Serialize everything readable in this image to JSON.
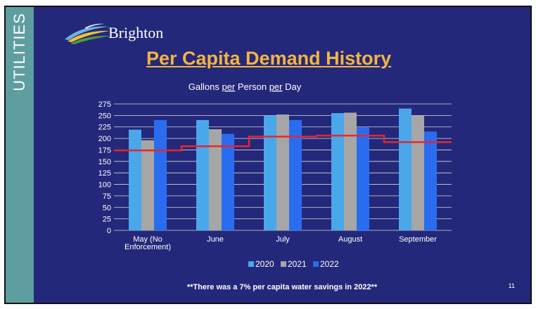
{
  "side_label": "UTILITIES",
  "brand": "Brighton",
  "page_title": "Per Capita Demand History",
  "page_number": "11",
  "footnote": "**There was a 7% per capita water savings in 2022**",
  "colors": {
    "background": "#23287a",
    "side_strip": "#5f9ea0",
    "title": "#f4b53f",
    "series_2020": "#4aa7ea",
    "series_2021": "#a6a6a6",
    "series_2022": "#2a6cf0",
    "target_line": "#e8262c"
  },
  "chart_data": {
    "type": "bar",
    "title_parts": [
      {
        "text": "Gallons ",
        "underline": false
      },
      {
        "text": "per",
        "underline": true
      },
      {
        "text": " Person ",
        "underline": false
      },
      {
        "text": "per",
        "underline": true
      },
      {
        "text": " Day",
        "underline": false
      }
    ],
    "categories": [
      [
        "May (No",
        "Enforcement)"
      ],
      [
        "June"
      ],
      [
        "July"
      ],
      [
        "August"
      ],
      [
        "September"
      ]
    ],
    "series": [
      {
        "name": "2020",
        "color": "#4aa7ea",
        "values": [
          219,
          240,
          250,
          255,
          265
        ]
      },
      {
        "name": "2021",
        "color": "#a6a6a6",
        "values": [
          196,
          220,
          252,
          256,
          250
        ]
      },
      {
        "name": "2022",
        "color": "#2a6cf0",
        "values": [
          240,
          210,
          240,
          224,
          215
        ]
      }
    ],
    "target_line": {
      "color": "#e8262c",
      "values": [
        174,
        183,
        204,
        206,
        192
      ]
    },
    "ylim": [
      0,
      275
    ],
    "yticks": [
      0,
      25,
      50,
      75,
      100,
      125,
      150,
      175,
      200,
      225,
      250,
      275
    ],
    "grid": true,
    "legend_position": "bottom"
  }
}
